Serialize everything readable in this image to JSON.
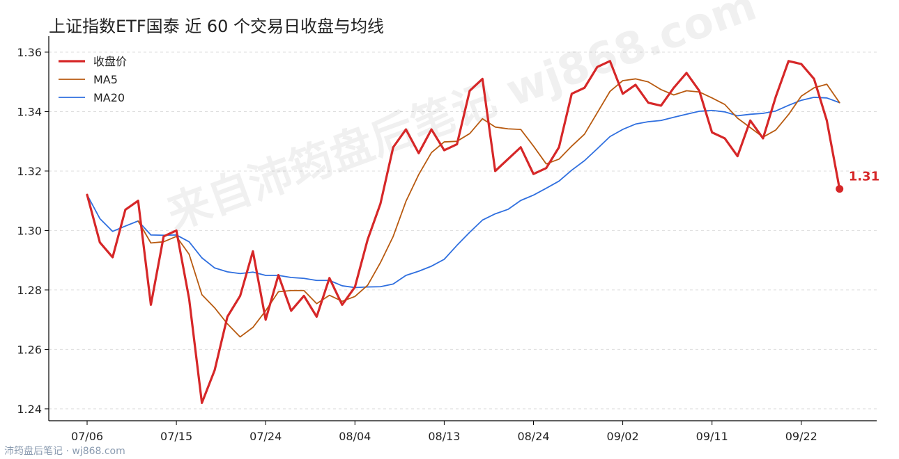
{
  "title": "上证指数ETF国泰 近 60 个交易日收盘与均线",
  "watermark": "来自沛筠盘后笔记 wj868.com",
  "footer": "沛筠盘后笔记 · wj868.com",
  "colors": {
    "close": "#d62728",
    "ma5": "#b85a10",
    "ma20": "#2f6fdf",
    "grid": "#dddddd",
    "axis": "#000000"
  },
  "chart_data": {
    "type": "line",
    "title": "上证指数ETF国泰 近 60 个交易日收盘与均线",
    "xlabel": "",
    "ylabel": "",
    "ylim": [
      1.236,
      1.3635
    ],
    "yticks": [
      "1.24",
      "1.26",
      "1.28",
      "1.30",
      "1.32",
      "1.34",
      "1.36"
    ],
    "xtick_labels": [
      "07/06",
      "07/15",
      "07/24",
      "08/04",
      "08/13",
      "08/24",
      "09/02",
      "09/11",
      "09/22"
    ],
    "xtick_positions": [
      0,
      7,
      14,
      21,
      28,
      35,
      42,
      49,
      56
    ],
    "grid": "horizontal dashed",
    "legend_position": "top-left",
    "last_value_label": "1.31",
    "series": [
      {
        "name": "收盘价",
        "values": [
          1.312,
          1.296,
          1.291,
          1.307,
          1.31,
          1.275,
          1.298,
          1.3,
          1.277,
          1.242,
          1.253,
          1.271,
          1.278,
          1.293,
          1.27,
          1.285,
          1.273,
          1.278,
          1.271,
          1.284,
          1.275,
          1.281,
          1.297,
          1.309,
          1.328,
          1.334,
          1.326,
          1.334,
          1.327,
          1.329,
          1.347,
          1.351,
          1.32,
          1.324,
          1.328,
          1.319,
          1.321,
          1.328,
          1.346,
          1.348,
          1.355,
          1.357,
          1.346,
          1.349,
          1.343,
          1.342,
          1.348,
          1.353,
          1.347,
          1.333,
          1.331,
          1.325,
          1.337,
          1.331,
          1.345,
          1.357,
          1.356,
          1.351,
          1.337,
          1.314
        ]
      },
      {
        "name": "MA5",
        "values": [
          null,
          null,
          null,
          null,
          1.3032,
          1.2958,
          1.2962,
          1.298,
          1.292,
          1.2784,
          1.274,
          1.2686,
          1.2642,
          1.2674,
          1.273,
          1.2794,
          1.2798,
          1.2798,
          1.2754,
          1.2782,
          1.2762,
          1.2778,
          1.2816,
          1.2892,
          1.298,
          1.3098,
          1.3188,
          1.3262,
          1.3298,
          1.33,
          1.3326,
          1.3376,
          1.3348,
          1.3342,
          1.334,
          1.3284,
          1.3224,
          1.324,
          1.3284,
          1.3324,
          1.3396,
          1.3468,
          1.3504,
          1.351,
          1.35,
          1.3474,
          1.3456,
          1.347,
          1.3466,
          1.3446,
          1.3424,
          1.3378,
          1.3346,
          1.3314,
          1.3338,
          1.339,
          1.3452,
          1.348,
          1.3492,
          1.343
        ]
      },
      {
        "name": "MA20",
        "values": [
          1.312,
          1.304,
          1.2997,
          1.3015,
          1.3032,
          1.2985,
          1.2984,
          1.2985,
          1.2962,
          1.2908,
          1.2874,
          1.2861,
          1.2855,
          1.286,
          1.2849,
          1.2849,
          1.2842,
          1.2839,
          1.2832,
          1.2832,
          1.2814,
          1.2808,
          1.281,
          1.2811,
          1.282,
          1.2849,
          1.2863,
          1.288,
          1.2903,
          1.295,
          1.2994,
          1.3035,
          1.3056,
          1.3071,
          1.3101,
          1.3119,
          1.3142,
          1.3166,
          1.3203,
          1.3235,
          1.3275,
          1.3316,
          1.334,
          1.3358,
          1.3366,
          1.337,
          1.3381,
          1.3391,
          1.3401,
          1.3404,
          1.3399,
          1.3386,
          1.3391,
          1.3394,
          1.3402,
          1.3421,
          1.3438,
          1.3448,
          1.3446,
          1.343
        ]
      }
    ]
  }
}
